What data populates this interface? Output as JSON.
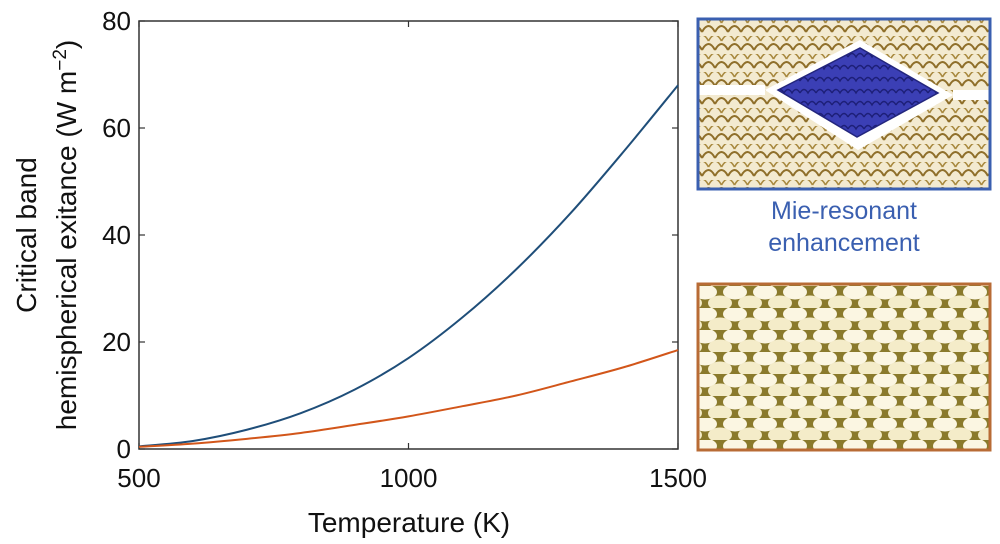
{
  "chart_data": {
    "type": "line",
    "title": "",
    "xlabel": "Temperature (K)",
    "ylabel_line1": "Critical band",
    "ylabel_line2": "hemispherical exitance (W m",
    "ylabel_sup": "−2",
    "ylabel_close": ")",
    "xlim": [
      500,
      1500
    ],
    "ylim": [
      0,
      80
    ],
    "xticks": [
      500,
      1000,
      1500
    ],
    "yticks": [
      0,
      20,
      40,
      60,
      80
    ],
    "grid": false,
    "legend": "none",
    "series": [
      {
        "color": "#1f4e79",
        "x": [
          500,
          600,
          700,
          800,
          900,
          1000,
          1100,
          1200,
          1300,
          1400,
          1500
        ],
        "y": [
          0.5,
          1.5,
          3.6,
          6.7,
          11.1,
          17.0,
          24.6,
          33.6,
          44.0,
          55.7,
          68.0
        ]
      },
      {
        "color": "#d2561a",
        "x": [
          500,
          600,
          700,
          800,
          900,
          1000,
          1100,
          1200,
          1300,
          1400,
          1500
        ],
        "y": [
          0.4,
          1.0,
          1.9,
          3.0,
          4.5,
          6.1,
          8.0,
          10.0,
          12.6,
          15.3,
          18.5
        ]
      }
    ]
  },
  "panels": {
    "top": {
      "caption_line1": "Mie-resonant",
      "caption_line2": "enhancement",
      "border_color": "#3a5fb0"
    },
    "bottom": {
      "border_color": "#b86b35"
    }
  }
}
